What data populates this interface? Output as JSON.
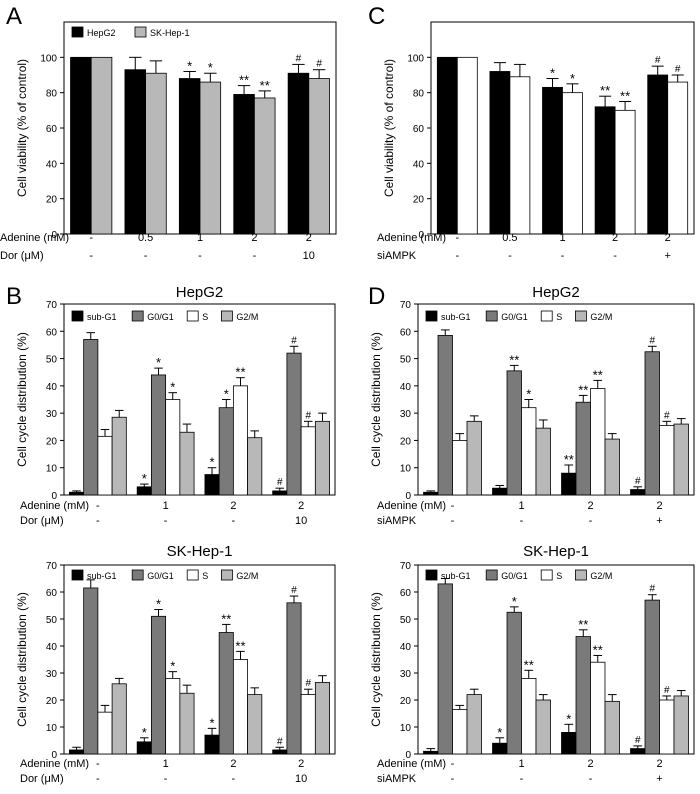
{
  "figure": {
    "panel_letters": [
      "A",
      "B",
      "C",
      "D"
    ]
  },
  "colors": {
    "black": "#000000",
    "dark_gray": "#7a7a7a",
    "white": "#ffffff",
    "light_gray": "#b8b8b8",
    "axis": "#000000"
  },
  "chart_data": [
    {
      "id": "A",
      "type": "bar",
      "ylabel": "Cell viability (% of control)",
      "ylim": [
        0,
        120
      ],
      "yticks": [
        0,
        20,
        40,
        60,
        80,
        100
      ],
      "groups": 5,
      "legend": [
        "HepG2",
        "SK-Hep-1"
      ],
      "series": [
        {
          "name": "HepG2",
          "color": "black",
          "values": [
            100,
            93,
            88,
            79,
            91
          ],
          "errors": [
            0,
            7,
            4,
            5,
            5
          ],
          "marks": [
            "",
            "",
            "*",
            "**",
            "#"
          ]
        },
        {
          "name": "SK-Hep-1",
          "color": "light_gray",
          "values": [
            100,
            91,
            86,
            77,
            88
          ],
          "errors": [
            0,
            7,
            5,
            4,
            5
          ],
          "marks": [
            "",
            "",
            "*",
            "**",
            "#"
          ]
        }
      ],
      "conditions": [
        {
          "label": "Adenine (mM)",
          "values": [
            "-",
            "0.5",
            "1",
            "2",
            "2"
          ]
        },
        {
          "label": "Dor (μM)",
          "values": [
            "-",
            "-",
            "-",
            "-",
            "10"
          ]
        }
      ]
    },
    {
      "id": "C",
      "type": "bar",
      "ylabel": "Cell viability (% of control)",
      "ylim": [
        0,
        120
      ],
      "yticks": [
        0,
        20,
        40,
        60,
        80,
        100
      ],
      "groups": 5,
      "legend": [],
      "series": [
        {
          "name": "",
          "color": "black",
          "values": [
            100,
            92,
            83,
            72,
            90
          ],
          "errors": [
            0,
            5,
            5,
            6,
            5
          ],
          "marks": [
            "",
            "",
            "*",
            "**",
            "#"
          ]
        },
        {
          "name": "",
          "color": "white",
          "values": [
            100,
            89,
            80,
            70,
            86
          ],
          "errors": [
            0,
            7,
            5,
            5,
            4
          ],
          "marks": [
            "",
            "",
            "*",
            "**",
            "#"
          ]
        }
      ],
      "conditions": [
        {
          "label": "Adenine (mM)",
          "values": [
            "-",
            "0.5",
            "1",
            "2",
            "2"
          ]
        },
        {
          "label": "siAMPK",
          "values": [
            "-",
            "-",
            "-",
            "-",
            "+"
          ]
        }
      ]
    },
    {
      "id": "B1",
      "type": "bar",
      "title": "HepG2",
      "ylabel": "Cell cycle distribution (%)",
      "ylim": [
        0,
        70
      ],
      "yticks": [
        0,
        10,
        20,
        30,
        40,
        50,
        60,
        70
      ],
      "groups": 4,
      "legend": [
        "sub-G1",
        "G0/G1",
        "S",
        "G2/M"
      ],
      "series": [
        {
          "name": "sub-G1",
          "color": "black",
          "values": [
            1,
            3,
            7.5,
            1.5
          ],
          "errors": [
            0.5,
            1,
            2.5,
            1
          ],
          "marks": [
            "",
            "*",
            "*",
            "#"
          ]
        },
        {
          "name": "G0/G1",
          "color": "dark_gray",
          "values": [
            57,
            44,
            32,
            52
          ],
          "errors": [
            2.5,
            2.5,
            3,
            2.5
          ],
          "marks": [
            "",
            "*",
            "*",
            "#"
          ]
        },
        {
          "name": "S",
          "color": "white",
          "values": [
            21.5,
            35,
            40,
            25
          ],
          "errors": [
            2.5,
            2.5,
            3,
            2
          ],
          "marks": [
            "",
            "*",
            "**",
            "#"
          ]
        },
        {
          "name": "G2/M",
          "color": "light_gray",
          "values": [
            28.5,
            23,
            21,
            27
          ],
          "errors": [
            2.5,
            3,
            2.5,
            3
          ],
          "marks": [
            "",
            "",
            "",
            ""
          ]
        }
      ],
      "conditions": [
        {
          "label": "Adenine (mM)",
          "values": [
            "-",
            "1",
            "2",
            "2"
          ]
        },
        {
          "label": "Dor (μM)",
          "values": [
            "-",
            "-",
            "-",
            "10"
          ]
        }
      ]
    },
    {
      "id": "B2",
      "type": "bar",
      "title": "SK-Hep-1",
      "ylabel": "Cell cycle distribution (%)",
      "ylim": [
        0,
        70
      ],
      "yticks": [
        0,
        10,
        20,
        30,
        40,
        50,
        60,
        70
      ],
      "groups": 4,
      "legend": [
        "sub-G1",
        "G0/G1",
        "S",
        "G2/M"
      ],
      "series": [
        {
          "name": "sub-G1",
          "color": "black",
          "values": [
            1.5,
            4.5,
            7,
            1.5
          ],
          "errors": [
            1,
            1.5,
            2.5,
            1
          ],
          "marks": [
            "",
            "*",
            "*",
            "#"
          ]
        },
        {
          "name": "G0/G1",
          "color": "dark_gray",
          "values": [
            61.5,
            51,
            45,
            56
          ],
          "errors": [
            3,
            2.5,
            3,
            2.5
          ],
          "marks": [
            "",
            "*",
            "**",
            "#"
          ]
        },
        {
          "name": "S",
          "color": "white",
          "values": [
            15.5,
            28,
            35,
            22
          ],
          "errors": [
            2.5,
            2.5,
            3,
            2
          ],
          "marks": [
            "",
            "*",
            "**",
            "#"
          ]
        },
        {
          "name": "G2/M",
          "color": "light_gray",
          "values": [
            26,
            22.5,
            22,
            26.5
          ],
          "errors": [
            2,
            3,
            2.5,
            2.5
          ],
          "marks": [
            "",
            "",
            "",
            ""
          ]
        }
      ],
      "conditions": [
        {
          "label": "Adenine (mM)",
          "values": [
            "-",
            "1",
            "2",
            "2"
          ]
        },
        {
          "label": "Dor (μM)",
          "values": [
            "-",
            "-",
            "-",
            "10"
          ]
        }
      ]
    },
    {
      "id": "D1",
      "type": "bar",
      "title": "HepG2",
      "ylabel": "Cell cycle distribution (%)",
      "ylim": [
        0,
        70
      ],
      "yticks": [
        0,
        10,
        20,
        30,
        40,
        50,
        60,
        70
      ],
      "groups": 4,
      "legend": [
        "sub-G1",
        "G0/G1",
        "S",
        "G2/M"
      ],
      "series": [
        {
          "name": "sub-G1",
          "color": "black",
          "values": [
            1,
            2.5,
            8,
            2
          ],
          "errors": [
            0.5,
            1,
            3,
            1
          ],
          "marks": [
            "",
            "",
            "**",
            "#"
          ]
        },
        {
          "name": "G0/G1",
          "color": "dark_gray",
          "values": [
            58.5,
            45.5,
            34,
            52.5
          ],
          "errors": [
            2,
            2,
            2.5,
            2
          ],
          "marks": [
            "",
            "**",
            "**",
            "#"
          ]
        },
        {
          "name": "S",
          "color": "white",
          "values": [
            20,
            32,
            39,
            25.5
          ],
          "errors": [
            2.5,
            3,
            3,
            1.5
          ],
          "marks": [
            "",
            "*",
            "**",
            "#"
          ]
        },
        {
          "name": "G2/M",
          "color": "light_gray",
          "values": [
            27,
            24.5,
            20.5,
            26
          ],
          "errors": [
            2,
            3,
            2,
            2
          ],
          "marks": [
            "",
            "",
            "",
            ""
          ]
        }
      ],
      "conditions": [
        {
          "label": "Adenine (mM)",
          "values": [
            "-",
            "1",
            "2",
            "2"
          ]
        },
        {
          "label": "siAMPK",
          "values": [
            "-",
            "-",
            "-",
            "+"
          ]
        }
      ]
    },
    {
      "id": "D2",
      "type": "bar",
      "title": "SK-Hep-1",
      "ylabel": "Cell cycle distribution (%)",
      "ylim": [
        0,
        70
      ],
      "yticks": [
        0,
        10,
        20,
        30,
        40,
        50,
        60,
        70
      ],
      "groups": 4,
      "legend": [
        "sub-G1",
        "G0/G1",
        "S",
        "G2/M"
      ],
      "series": [
        {
          "name": "sub-G1",
          "color": "black",
          "values": [
            1,
            4,
            8,
            2
          ],
          "errors": [
            1,
            2,
            3,
            1
          ],
          "marks": [
            "",
            "*",
            "*",
            "#"
          ]
        },
        {
          "name": "G0/G1",
          "color": "dark_gray",
          "values": [
            63,
            52.5,
            43.5,
            57
          ],
          "errors": [
            2,
            2,
            2.5,
            2
          ],
          "marks": [
            "",
            "*",
            "**",
            "#"
          ]
        },
        {
          "name": "S",
          "color": "white",
          "values": [
            16.5,
            28,
            34,
            20
          ],
          "errors": [
            1.5,
            3,
            2.5,
            1.5
          ],
          "marks": [
            "",
            "**",
            "**",
            "#"
          ]
        },
        {
          "name": "G2/M",
          "color": "light_gray",
          "values": [
            22,
            20,
            19.5,
            21.5
          ],
          "errors": [
            2,
            2,
            2.5,
            2
          ],
          "marks": [
            "",
            "",
            "",
            ""
          ]
        }
      ],
      "conditions": [
        {
          "label": "Adenine (mM)",
          "values": [
            "-",
            "1",
            "2",
            "2"
          ]
        },
        {
          "label": "siAMPK",
          "values": [
            "-",
            "-",
            "-",
            "+"
          ]
        }
      ]
    }
  ]
}
